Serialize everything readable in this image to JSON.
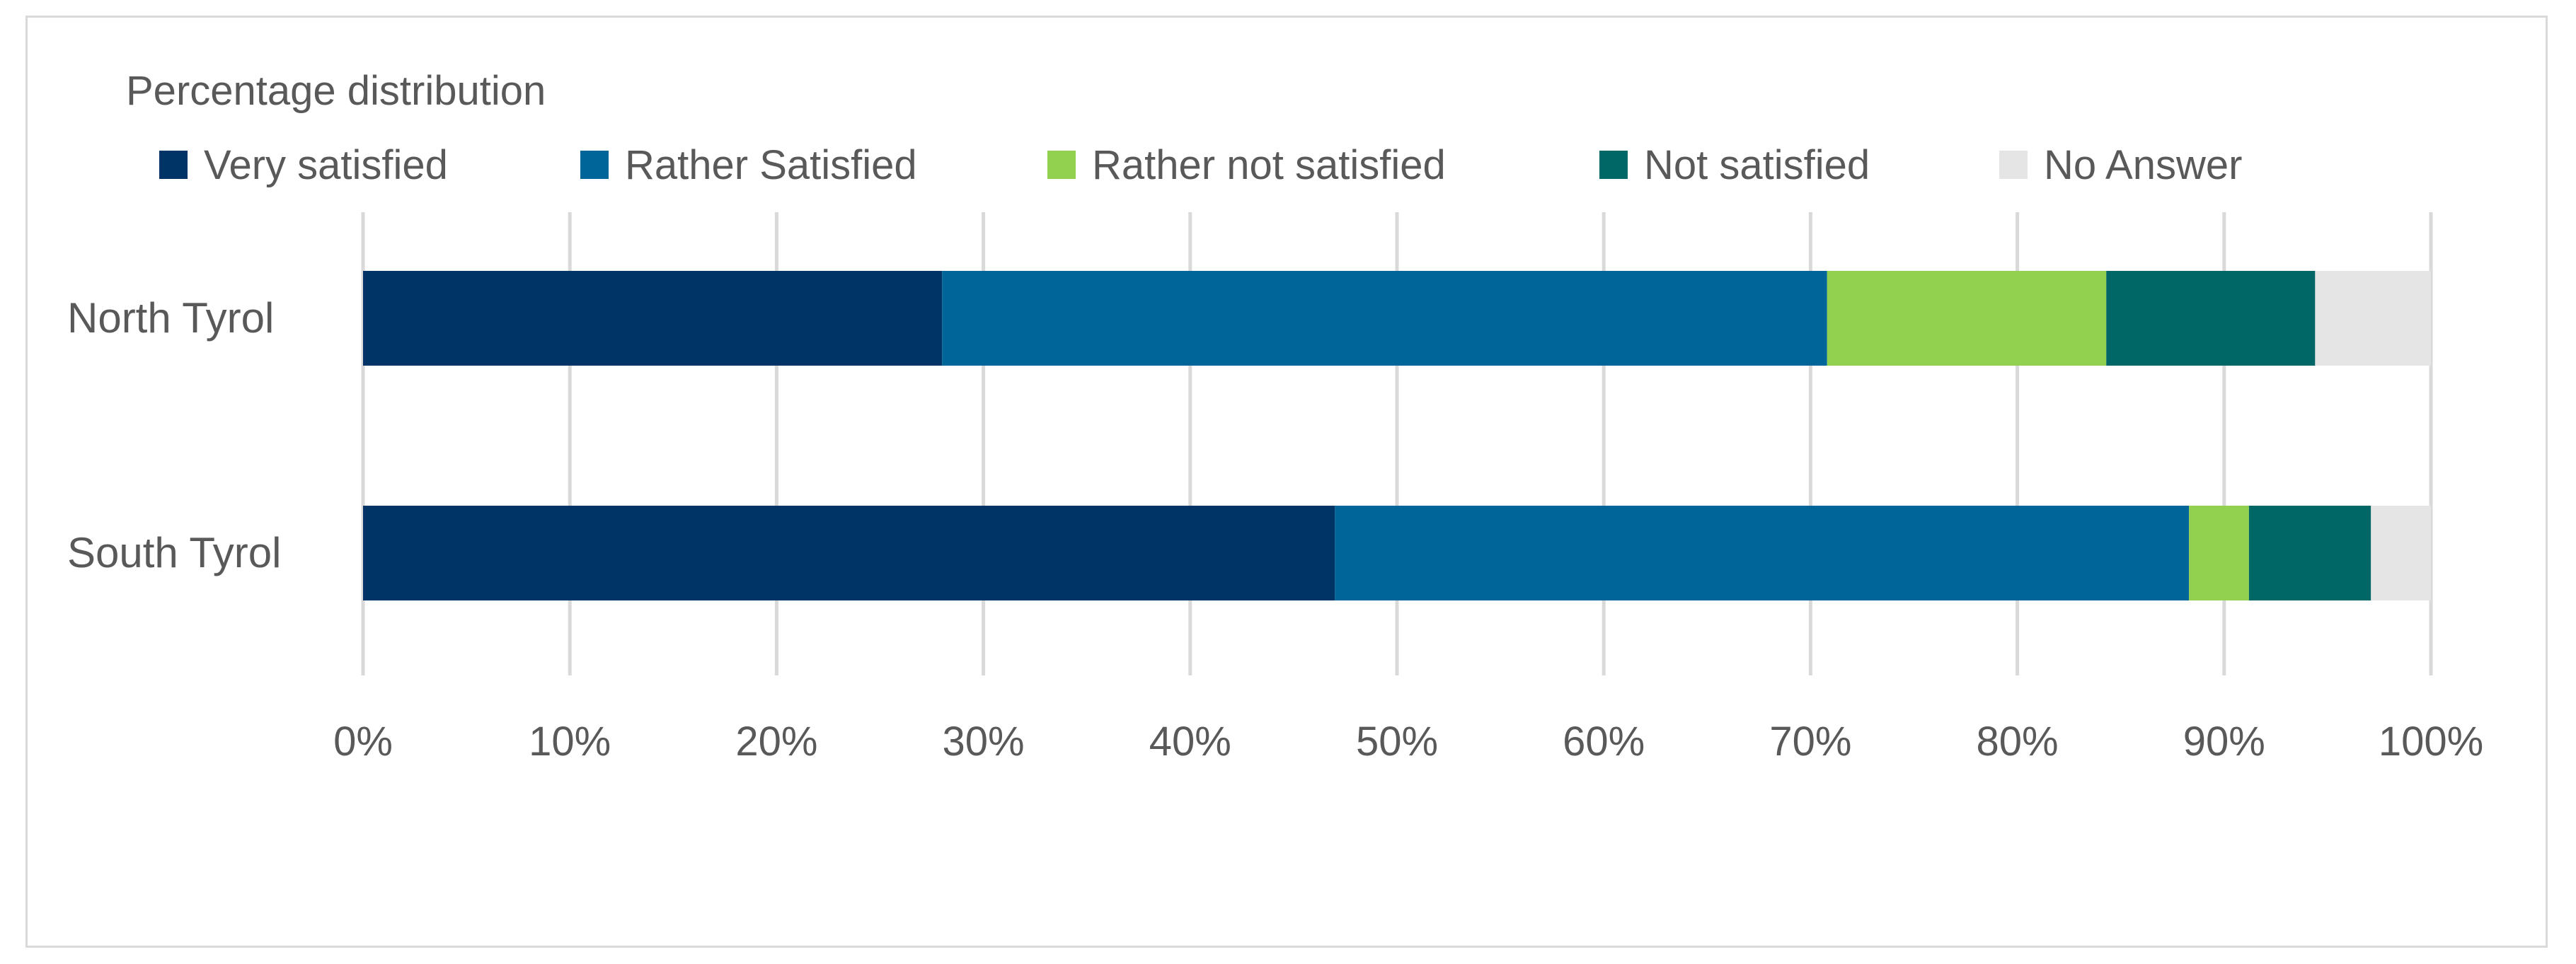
{
  "chart_data": {
    "type": "bar",
    "orientation": "horizontal",
    "stacked": true,
    "title": "Percentage distribution",
    "categories": [
      "North Tyrol",
      "South Tyrol"
    ],
    "series": [
      {
        "name": "Very satisfied",
        "color": "#003366",
        "values": [
          28,
          47
        ]
      },
      {
        "name": "Rather Satisfied",
        "color": "#006699",
        "values": [
          42.8,
          41.3
        ]
      },
      {
        "name": "Rather not satisfied",
        "color": "#92d050",
        "values": [
          13.5,
          2.9
        ]
      },
      {
        "name": "Not satisfied",
        "color": "#006666",
        "values": [
          10.1,
          5.9
        ]
      },
      {
        "name": "No Answer",
        "color": "#e5e5e5",
        "values": [
          5.6,
          2.9
        ]
      }
    ],
    "xlim": [
      0,
      100
    ],
    "xticks": [
      "0%",
      "10%",
      "20%",
      "30%",
      "40%",
      "50%",
      "60%",
      "70%",
      "80%",
      "90%",
      "100%"
    ],
    "grid": true,
    "legend_position": "top"
  }
}
